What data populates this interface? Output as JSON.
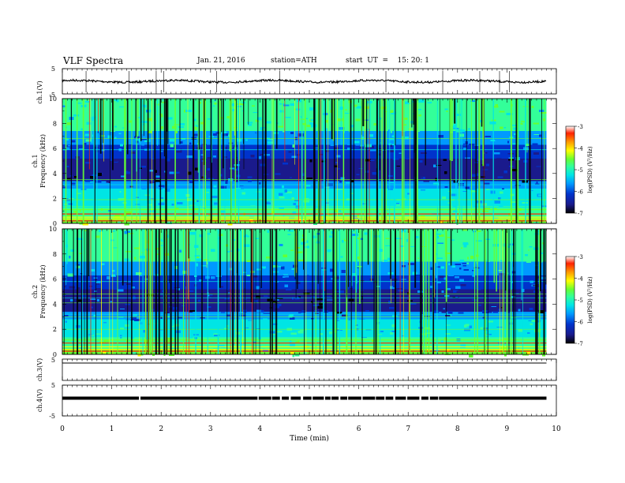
{
  "header": {
    "title": "VLF Spectra",
    "date": "Jan. 21, 2016",
    "station": "station=ATH",
    "start": "start  UT  =    15: 20: 1"
  },
  "chart_data": [
    {
      "type": "line",
      "panel": "ch1-waveform",
      "ylabel": "ch.1(V)",
      "ylim": [
        -5,
        5
      ],
      "yticks": [
        "5",
        "-5"
      ],
      "baseline": 0.5,
      "spike_minutes": [
        0.48,
        1.35,
        1.9,
        2.05,
        3.12,
        4.4,
        6.55,
        7.7,
        8.45,
        8.85,
        9.05
      ]
    },
    {
      "type": "heatmap",
      "panel": "ch1-spectrogram",
      "ylabel": "Frequency (kHz)",
      "channel_label": "ch.1",
      "ylim": [
        0,
        10
      ],
      "yticks": [
        "0",
        "2",
        "4",
        "6",
        "8",
        "10"
      ],
      "colorbar_label": "log(PSD) (V²/Hz)",
      "colorbar_ticks": [
        "-3",
        "-4",
        "-5",
        "-6",
        "-7"
      ],
      "colorbar_range": [
        -7,
        -3
      ]
    },
    {
      "type": "heatmap",
      "panel": "ch2-spectrogram",
      "ylabel": "Frequency (kHz)",
      "channel_label": "ch.2",
      "ylim": [
        0,
        10
      ],
      "yticks": [
        "0",
        "2",
        "4",
        "6",
        "8",
        "10"
      ],
      "colorbar_label": "log(PSD) (V²/Hz)",
      "colorbar_ticks": [
        "-3",
        "-4",
        "-5",
        "-6",
        "-7"
      ],
      "colorbar_range": [
        -7,
        -3
      ]
    },
    {
      "type": "line",
      "panel": "ch3-waveform",
      "ylabel": "ch.3(V)",
      "yticks": [
        "5"
      ],
      "ylim": [
        -5,
        5
      ]
    },
    {
      "type": "line",
      "panel": "ch4-waveform",
      "ylabel": "ch.4(V)",
      "yticks": [
        "5",
        "-5"
      ],
      "ylim": [
        -5,
        5
      ],
      "level": 0,
      "gap_start_min": 3.95,
      "gap_end_min": 7.75
    }
  ],
  "x_axis": {
    "label": "Time  (min)",
    "range": [
      0,
      10
    ],
    "data_end": 9.8,
    "ticks": [
      "0",
      "1",
      "2",
      "3",
      "4",
      "5",
      "6",
      "7",
      "8",
      "9",
      "10"
    ]
  },
  "colors": {
    "colormap": [
      "#000000",
      "#1a1a8c",
      "#0033cc",
      "#0099ff",
      "#00e5e5",
      "#33ff99",
      "#66ff33",
      "#ffff00",
      "#ff9900",
      "#ff2200",
      "#ffffff"
    ],
    "deep_blue": "#061a7a",
    "black": "#000000"
  }
}
